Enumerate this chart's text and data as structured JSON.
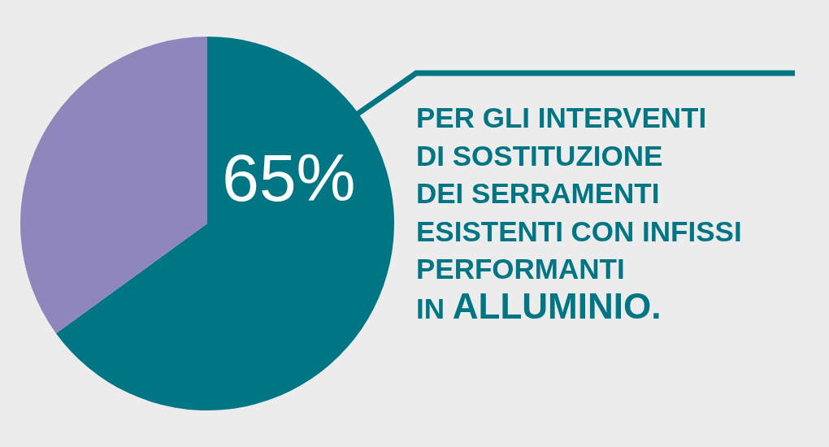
{
  "chart_data": {
    "type": "pie",
    "categories": [
      null,
      null
    ],
    "values": [
      65,
      35
    ],
    "colors": [
      "#007584",
      "#8f87bc"
    ],
    "value_labels": [
      "65%",
      null
    ],
    "annotations": [
      "PER GLI INTERVENTI\nDI SOSTITUZIONE\nDEI SERRAMENTI\nESISTENTI CON INFISSI\nPERFORMANTI\nIN ALLUMINIO."
    ]
  }
}
